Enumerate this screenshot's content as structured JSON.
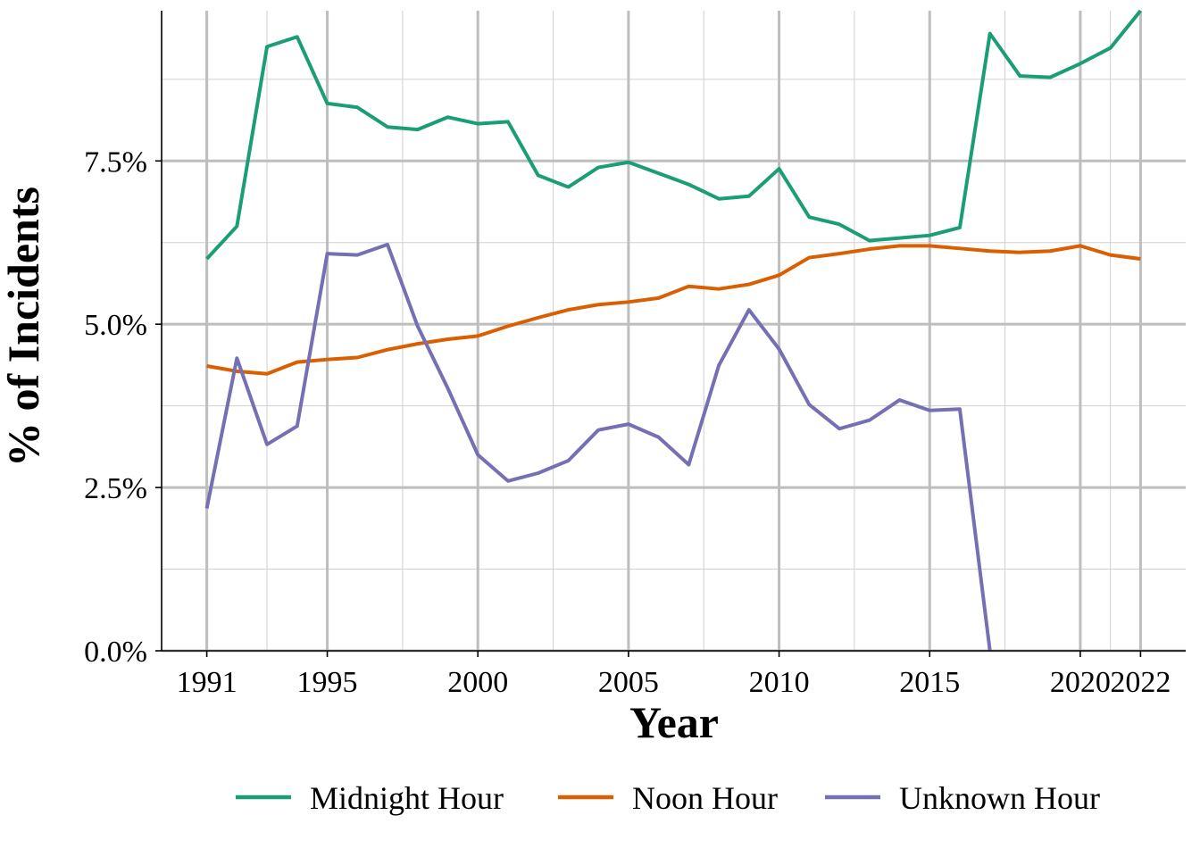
{
  "chart_data": {
    "type": "line",
    "title": "",
    "xlabel": "Year",
    "ylabel": "% of Incidents",
    "x": [
      1991,
      1992,
      1993,
      1994,
      1995,
      1996,
      1997,
      1998,
      1999,
      2000,
      2001,
      2002,
      2003,
      2004,
      2005,
      2006,
      2007,
      2008,
      2009,
      2010,
      2011,
      2012,
      2013,
      2014,
      2015,
      2016,
      2017,
      2018,
      2019,
      2020,
      2021,
      2022
    ],
    "x_ticks": [
      1991,
      1995,
      2000,
      2005,
      2010,
      2015,
      2020,
      2022
    ],
    "x_tick_labels": [
      "1991",
      "1995",
      "2000",
      "2005",
      "2010",
      "2015",
      "2020",
      "2022"
    ],
    "y_ticks": [
      0,
      2.5,
      5,
      7.5
    ],
    "y_tick_labels": [
      "0.0%",
      "2.5%",
      "5.0%",
      "7.5%"
    ],
    "xlim": [
      1989.5,
      2023.5
    ],
    "ylim": [
      0,
      9.8
    ],
    "grid": true,
    "legend_position": "bottom",
    "series": [
      {
        "name": "Midnight Hour",
        "color": "#1b9e77",
        "values": [
          6.0,
          6.5,
          9.25,
          9.4,
          8.38,
          8.32,
          8.02,
          7.98,
          8.17,
          8.07,
          8.1,
          7.28,
          7.1,
          7.4,
          7.48,
          7.31,
          7.14,
          6.92,
          6.96,
          7.38,
          6.64,
          6.53,
          6.28,
          6.32,
          6.36,
          6.48,
          9.45,
          8.8,
          8.78,
          8.99,
          9.23,
          9.8
        ]
      },
      {
        "name": "Noon Hour",
        "color": "#d95f02",
        "values": [
          4.36,
          4.28,
          4.24,
          4.42,
          4.46,
          4.49,
          4.61,
          4.7,
          4.77,
          4.82,
          4.97,
          5.1,
          5.22,
          5.3,
          5.34,
          5.4,
          5.58,
          5.54,
          5.61,
          5.75,
          6.02,
          6.08,
          6.15,
          6.2,
          6.2,
          6.16,
          6.12,
          6.1,
          6.12,
          6.2,
          6.06,
          6.0
        ]
      },
      {
        "name": "Unknown Hour",
        "color": "#7570b3",
        "values": [
          2.18,
          4.48,
          3.16,
          3.44,
          6.08,
          6.06,
          6.22,
          4.97,
          4.02,
          3.0,
          2.6,
          2.72,
          2.91,
          3.38,
          3.47,
          3.27,
          2.85,
          4.37,
          5.22,
          4.62,
          3.77,
          3.4,
          3.53,
          3.84,
          3.68,
          3.7,
          0.0,
          null,
          null,
          null,
          null,
          null
        ]
      }
    ]
  }
}
